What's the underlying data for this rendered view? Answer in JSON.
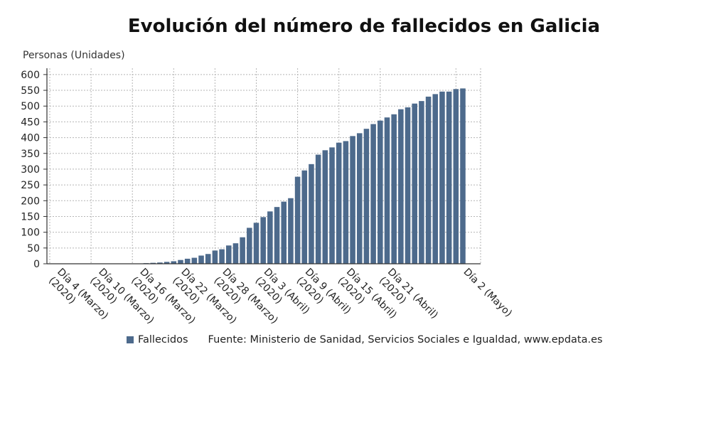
{
  "chart_data": {
    "type": "bar",
    "title": "Evolución del número de fallecidos en Galicia",
    "ylabel": "Personas (Unidades)",
    "xlabel": "",
    "ylim": [
      0,
      620
    ],
    "yticks": [
      0,
      50,
      100,
      150,
      200,
      250,
      300,
      350,
      400,
      450,
      500,
      550,
      600
    ],
    "grid": true,
    "bar_color": "#4d6a8c",
    "tick_labels": [
      {
        "index": 0,
        "lines": [
          "Día 4 (Marzo)",
          "(2020)"
        ]
      },
      {
        "index": 6,
        "lines": [
          "Día 10 (Marzo)",
          "(2020)"
        ]
      },
      {
        "index": 12,
        "lines": [
          "Día 16 (Marzo)",
          "(2020)"
        ]
      },
      {
        "index": 18,
        "lines": [
          "Día 22 (Marzo)",
          "(2020)"
        ]
      },
      {
        "index": 24,
        "lines": [
          "Día 28 (Marzo)",
          "(2020)"
        ]
      },
      {
        "index": 30,
        "lines": [
          "Día 3 (Abril)",
          "(2020)"
        ]
      },
      {
        "index": 36,
        "lines": [
          "Día 9 (Abril)",
          "(2020)"
        ]
      },
      {
        "index": 42,
        "lines": [
          "Día 15 (Abril)",
          "(2020)"
        ]
      },
      {
        "index": 48,
        "lines": [
          "Día 21 (Abril)",
          "(2020)"
        ]
      },
      {
        "index": 59,
        "lines": [
          "Día 2 (Mayo)"
        ]
      }
    ],
    "series": [
      {
        "name": "Fallecidos",
        "values": [
          0,
          0,
          0,
          0,
          0,
          0,
          0,
          0,
          0,
          0,
          0,
          0,
          1,
          1,
          2,
          3,
          4,
          6,
          8,
          12,
          16,
          19,
          26,
          31,
          42,
          46,
          58,
          65,
          84,
          114,
          130,
          148,
          166,
          180,
          197,
          208,
          276,
          296,
          316,
          346,
          360,
          369,
          384,
          389,
          405,
          414,
          428,
          443,
          454,
          464,
          474,
          490,
          496,
          508,
          516,
          530,
          538,
          546,
          546,
          554,
          556
        ]
      }
    ]
  },
  "legend": {
    "label": "Fallecidos",
    "source": "Fuente: Ministerio de Sanidad, Servicios Sociales e Igualdad, www.epdata.es"
  }
}
